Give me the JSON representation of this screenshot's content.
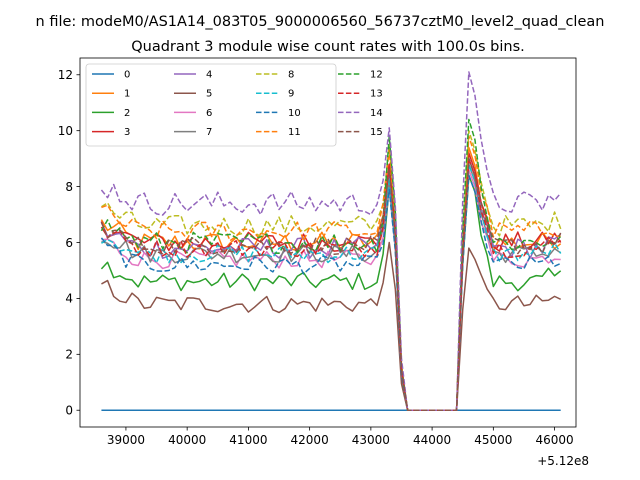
{
  "figure": {
    "suptitle": "n file: modeM0/AS1A14_083T05_9000006560_56737cztM0_level2_quad_clean",
    "title": "Quadrant 3 module wise count rates with 100.0s bins."
  },
  "chart_data": {
    "type": "line",
    "title": "Quadrant 3 module wise count rates with 100.0s bins.",
    "xlabel": "",
    "ylabel": "",
    "x_offset_label": "+5.12e8",
    "x_start": 38600,
    "x_step": 100,
    "x_count": 76,
    "xlim": [
      38250,
      46350
    ],
    "ylim": [
      -0.6,
      12.6
    ],
    "xticks": [
      39000,
      40000,
      41000,
      42000,
      43000,
      44000,
      45000,
      46000
    ],
    "xtick_labels": [
      "39000",
      "40000",
      "41000",
      "42000",
      "43000",
      "44000",
      "45000",
      "46000"
    ],
    "yticks": [
      0,
      2,
      4,
      6,
      8,
      10,
      12
    ],
    "ytick_labels": [
      "0",
      "2",
      "4",
      "6",
      "8",
      "10",
      "12"
    ],
    "gap_range": [
      43600,
      44400
    ],
    "legend_position": "upper-left",
    "legend_columns": 4,
    "series": [
      {
        "name": "0",
        "color": "#1f77b4",
        "dashed": false,
        "base": 0,
        "amp": 0,
        "peak1": 0,
        "peak2": 0
      },
      {
        "name": "1",
        "color": "#ff7f0e",
        "dashed": false,
        "base": 6.0,
        "amp": 0.35,
        "peak1": 8.8,
        "peak2": 9.4
      },
      {
        "name": "2",
        "color": "#2ca02c",
        "dashed": false,
        "base": 4.6,
        "amp": 0.3,
        "peak1": 8.0,
        "peak2": 8.4
      },
      {
        "name": "3",
        "color": "#d62728",
        "dashed": false,
        "base": 6.0,
        "amp": 0.35,
        "peak1": 8.8,
        "peak2": 9.2
      },
      {
        "name": "4",
        "color": "#9467bd",
        "dashed": false,
        "base": 5.8,
        "amp": 0.35,
        "peak1": 8.5,
        "peak2": 9.0
      },
      {
        "name": "5",
        "color": "#8c564b",
        "dashed": false,
        "base": 3.8,
        "amp": 0.3,
        "peak1": 6.0,
        "peak2": 5.8
      },
      {
        "name": "6",
        "color": "#e377c2",
        "dashed": false,
        "base": 5.4,
        "amp": 0.3,
        "peak1": 8.0,
        "peak2": 8.6
      },
      {
        "name": "7",
        "color": "#7f7f7f",
        "dashed": false,
        "base": 5.6,
        "amp": 0.3,
        "peak1": 8.2,
        "peak2": 8.8
      },
      {
        "name": "8",
        "color": "#bcbd22",
        "dashed": true,
        "base": 6.6,
        "amp": 0.35,
        "peak1": 9.5,
        "peak2": 10.0
      },
      {
        "name": "9",
        "color": "#17becf",
        "dashed": true,
        "base": 5.6,
        "amp": 0.3,
        "peak1": 8.3,
        "peak2": 8.8
      },
      {
        "name": "10",
        "color": "#1f77b4",
        "dashed": true,
        "base": 5.2,
        "amp": 0.3,
        "peak1": 7.9,
        "peak2": 8.4
      },
      {
        "name": "11",
        "color": "#ff7f0e",
        "dashed": true,
        "base": 6.4,
        "amp": 0.35,
        "peak1": 9.3,
        "peak2": 9.8
      },
      {
        "name": "12",
        "color": "#2ca02c",
        "dashed": true,
        "base": 6.0,
        "amp": 0.35,
        "peak1": 9.8,
        "peak2": 10.4
      },
      {
        "name": "13",
        "color": "#d62728",
        "dashed": true,
        "base": 5.8,
        "amp": 0.3,
        "peak1": 8.8,
        "peak2": 9.0
      },
      {
        "name": "14",
        "color": "#9467bd",
        "dashed": true,
        "base": 7.4,
        "amp": 0.4,
        "peak1": 10.1,
        "peak2": 12.1
      },
      {
        "name": "15",
        "color": "#8c564b",
        "dashed": true,
        "base": 5.9,
        "amp": 0.3,
        "peak1": 8.6,
        "peak2": 9.0
      }
    ]
  }
}
